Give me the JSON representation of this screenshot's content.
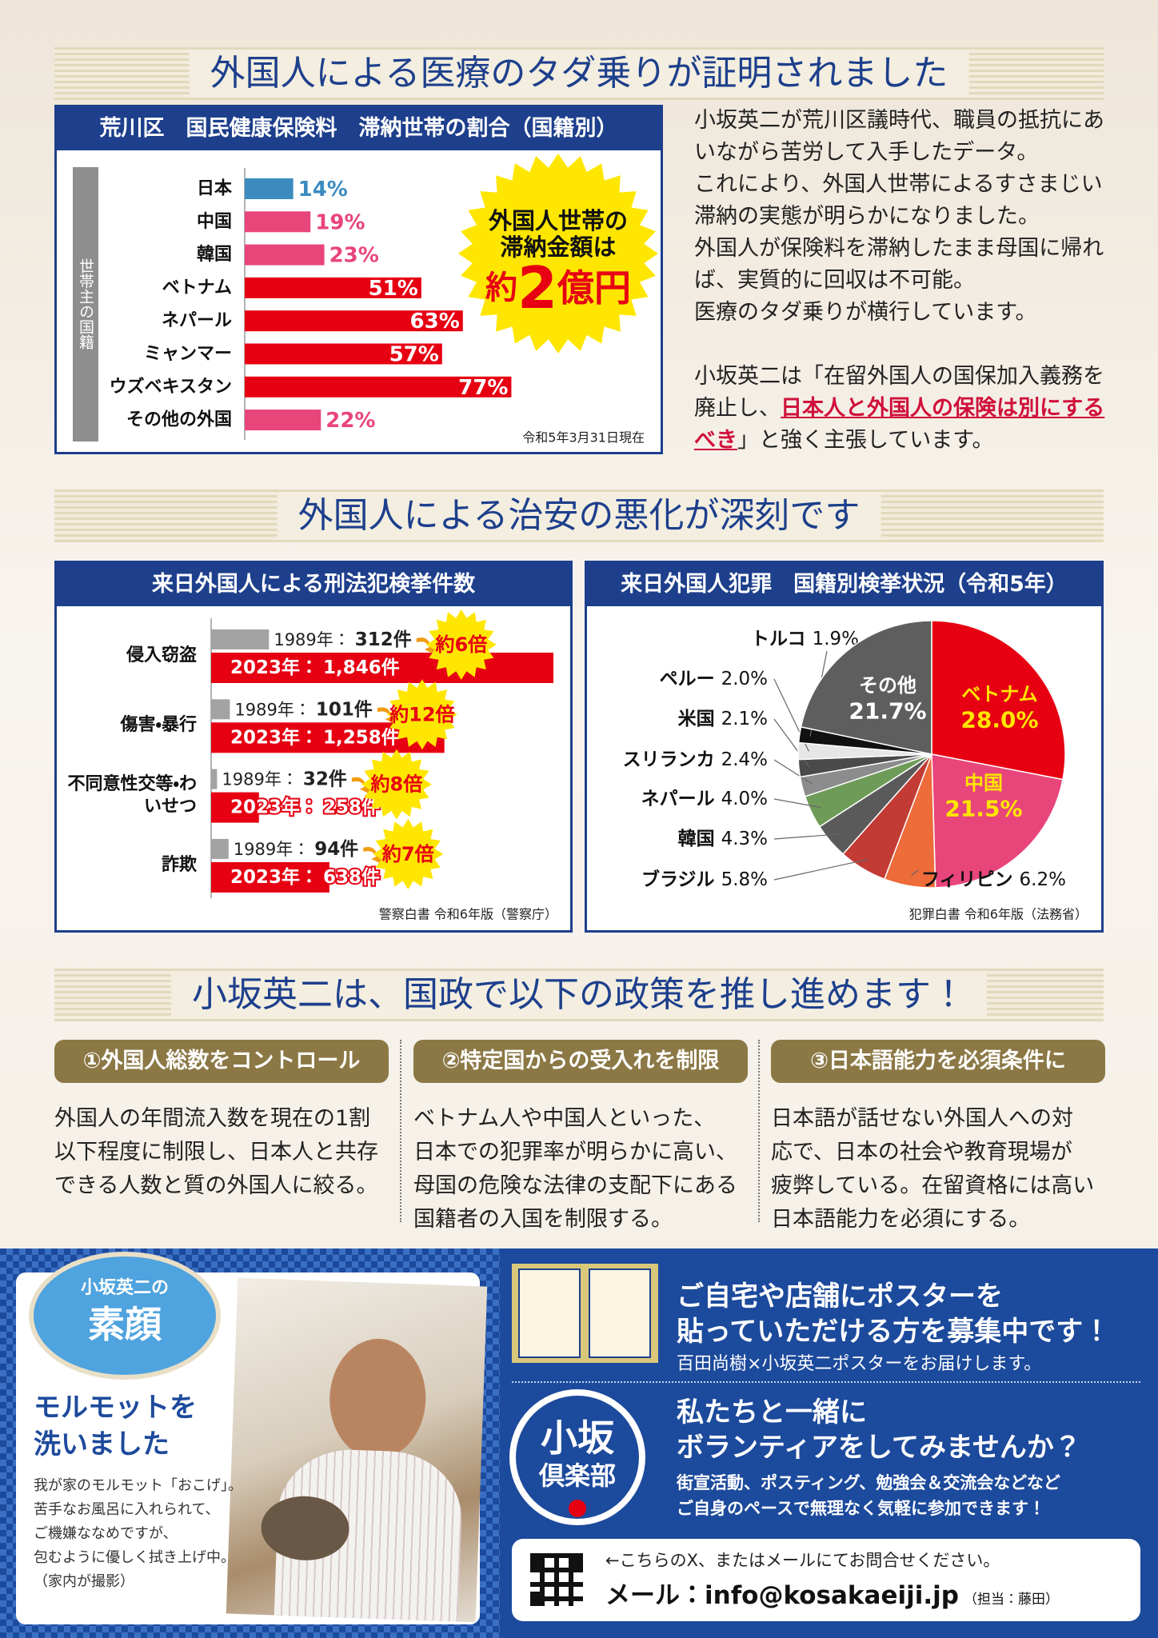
{
  "section1": {
    "title": "外国人による医療のタダ乗りが証明されました",
    "paragraphs": [
      "小坂英二が荒川区議時代、職員の抵抗にあいながら苦労して入手したデータ。",
      "これにより、外国人世帯によるすさまじい滞納の実態が明らかになりました。",
      "外国人が保険料を滞納したまま母国に帰れば、実質的に回収は不可能。",
      "医療のタダ乗りが横行しています。"
    ],
    "claim": {
      "before": "小坂英二は「在留外国人の国保加入義務を廃止し、",
      "emphasis": "日本人と外国人の保険は別にするべき",
      "after": "」と強く主張しています。"
    }
  },
  "section2": {
    "title": "外国人による治安の悪化が深刻です"
  },
  "section3": {
    "title": "小坂英二は、国政で以下の政策を推し進めます！",
    "policies": [
      {
        "title": "①外国人総数をコントロール",
        "body": [
          "外国人の年間流入数を現在の1割",
          "以下程度に制限し、日本人と共存",
          "できる人数と質の外国人に絞る。"
        ]
      },
      {
        "title": "②特定国からの受入れを制限",
        "body": [
          "ベトナム人や中国人といった、",
          "日本での犯罪率が明らかに高い、",
          "母国の危険な法律の支配下にある",
          "国籍者の入国を制限する。"
        ]
      },
      {
        "title": "③日本語能力を必須条件に",
        "body": [
          "日本語が話せない外国人への対",
          "応で、日本の社会や教育現場が",
          "疲弊している。在留資格には高い",
          "日本語能力を必須にする。"
        ]
      }
    ]
  },
  "profile": {
    "badge": [
      "小坂英二の",
      "素顔"
    ],
    "headline": [
      "モルモットを",
      "洗いました"
    ],
    "body": [
      "我が家のモルモット「おこげ」。",
      "苦手なお風呂に入れられて、",
      "ご機嫌ななめですが、",
      "包むように優しく拭き上げ中。",
      "（家内が撮影）"
    ]
  },
  "recruit": {
    "poster": {
      "headline": [
        "ご自宅や店舗にポスターを",
        "貼っていただける方を募集中です！"
      ],
      "text": "百田尚樹×小坂英二ポスターをお届けします。"
    },
    "volunteer": {
      "logo": [
        "小坂",
        "倶楽部"
      ],
      "headline": [
        "私たちと一緒に",
        "ボランティアをしてみませんか？"
      ],
      "body": [
        "街宣活動、ポスティング、勉強会＆交流会などなど",
        "ご自身のペースで無理なく気軽に参加できます！"
      ]
    },
    "contact": {
      "note": "←こちらのX、またはメールにてお問合せください。",
      "email": "メール：info@kosakaeiji.jp",
      "person": "（担当：藤田）"
    }
  },
  "chart_data": [
    {
      "type": "bar",
      "orientation": "horizontal",
      "title": "荒川区　国民健康保険料　滞納世帯の割合（国籍別）",
      "y_label": "世帯主の国籍",
      "categories": [
        "日本",
        "中国",
        "韓国",
        "ベトナム",
        "ネパール",
        "ミャンマー",
        "ウズベキスタン",
        "その他の外国"
      ],
      "values": [
        14,
        19,
        23,
        51,
        63,
        57,
        77,
        22
      ],
      "value_labels": [
        "14%",
        "19%",
        "23%",
        "51%",
        "63%",
        "57%",
        "77%",
        "22%"
      ],
      "colors": [
        "#3b8bbf",
        "#e8457a",
        "#e8457a",
        "#e60012",
        "#e60012",
        "#e60012",
        "#e60012",
        "#e8457a"
      ],
      "callout": {
        "lines": [
          "外国人世帯の",
          "滞納金額は"
        ],
        "amount_prefix": "約",
        "amount": 2,
        "amount_suffix": "億円"
      },
      "note": "令和5年3月31日現在"
    },
    {
      "type": "grouped_bar",
      "orientation": "horizontal",
      "title": "来日外国人による刑法犯検挙件数",
      "categories": [
        "侵入窃盗",
        "傷害・暴行",
        "不同意性交等・わいせつ",
        "詐欺"
      ],
      "label_separator": "：",
      "series": [
        {
          "name": "1989年",
          "color": "#a3a3a3",
          "values": [
            312,
            101,
            32,
            94
          ],
          "value_labels": [
            "312件",
            "101件",
            "32件",
            "94件"
          ]
        },
        {
          "name": "2023年",
          "color": "#e60012",
          "values": [
            1846,
            1258,
            258,
            638
          ],
          "value_labels": [
            "1,846件",
            "1,258件",
            "258件",
            "638件"
          ]
        }
      ],
      "multiplier_labels": [
        "約6倍",
        "約12倍",
        "約8倍",
        "約7倍"
      ],
      "source": "警察白書 令和6年版（警察庁）"
    },
    {
      "type": "pie",
      "title": "来日外国人犯罪　国籍別検挙状況（令和5年）",
      "categories": [
        "ベトナム",
        "中国",
        "フィリピン",
        "ブラジル",
        "韓国",
        "ネパール",
        "スリランカ",
        "米国",
        "ペルー",
        "トルコ",
        "その他"
      ],
      "values": [
        28.0,
        21.5,
        6.2,
        5.8,
        4.3,
        4.0,
        2.4,
        2.1,
        2.0,
        1.9,
        21.7
      ],
      "value_labels": [
        "28.0%",
        "21.5%",
        "6.2%",
        "5.8%",
        "4.3%",
        "4.0%",
        "2.4%",
        "2.1%",
        "2.0%",
        "1.9%",
        "21.7%"
      ],
      "colors": [
        "#e60012",
        "#e8457a",
        "#ee6b3a",
        "#c23b34",
        "#5a5a5a",
        "#6e9c58",
        "#8c8c8c",
        "#4a4a4a",
        "#e6e6e6",
        "#111111",
        "#5e5e5e"
      ],
      "source": "犯罪白書 令和6年版（法務省）"
    }
  ]
}
